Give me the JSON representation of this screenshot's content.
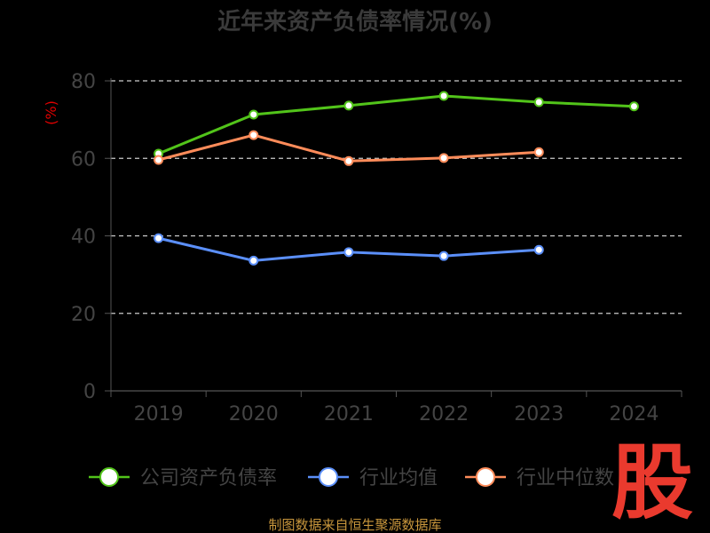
{
  "chart_data": {
    "type": "line",
    "title": "近年来资产负债率情况(%)",
    "unit_label": "(%)",
    "categories": [
      "2019",
      "2020",
      "2021",
      "2022",
      "2023",
      "2024"
    ],
    "y_ticks": [
      "0",
      "20",
      "40",
      "60",
      "80"
    ],
    "ylim": [
      0,
      80
    ],
    "grid": "horizontal dashed",
    "legend_position": "bottom",
    "series": [
      {
        "name": "公司资产负债率",
        "color": "#52c41a",
        "values": [
          61.2,
          71.3,
          73.6,
          76.1,
          74.5,
          73.4
        ]
      },
      {
        "name": "行业均值",
        "color": "#5b8ff9",
        "values": [
          39.4,
          33.6,
          35.8,
          34.8,
          36.4,
          null
        ]
      },
      {
        "name": "行业中位数",
        "color": "#ff8c5a",
        "values": [
          59.6,
          66.0,
          59.3,
          60.1,
          61.6,
          null
        ]
      }
    ]
  },
  "source_text": "制图数据来自恒生聚源数据库",
  "watermark_text": "股"
}
